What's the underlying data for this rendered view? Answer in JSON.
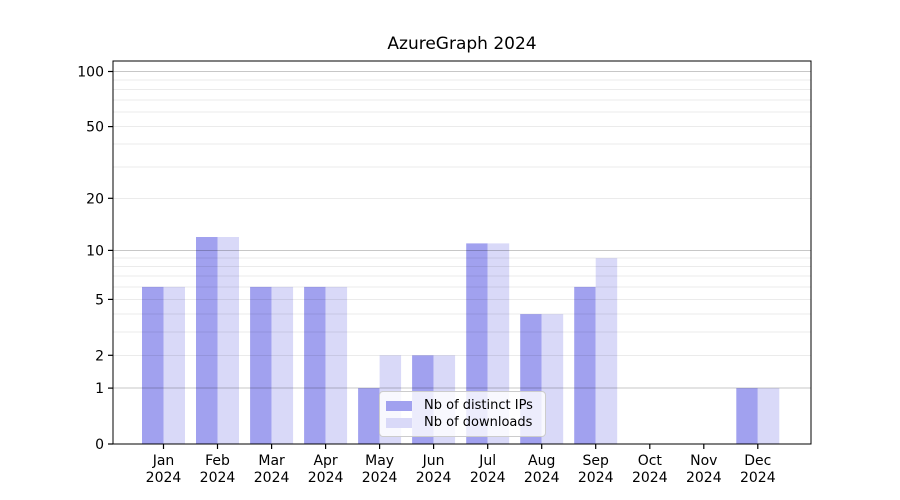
{
  "figure": {
    "title": "AzureGraph 2024"
  },
  "chart_data": {
    "type": "bar",
    "title": "AzureGraph 2024",
    "categories": [
      "Jan 2024",
      "Feb 2024",
      "Mar 2024",
      "Apr 2024",
      "May 2024",
      "Jun 2024",
      "Jul 2024",
      "Aug 2024",
      "Sep 2024",
      "Oct 2024",
      "Nov 2024",
      "Dec 2024"
    ],
    "x_tick_month": [
      "Jan",
      "Feb",
      "Mar",
      "Apr",
      "May",
      "Jun",
      "Jul",
      "Aug",
      "Sep",
      "Oct",
      "Nov",
      "Dec"
    ],
    "x_tick_year": [
      "2024",
      "2024",
      "2024",
      "2024",
      "2024",
      "2024",
      "2024",
      "2024",
      "2024",
      "2024",
      "2024",
      "2024"
    ],
    "series": [
      {
        "name": "Nb of distinct IPs",
        "color": "#a1a1ef",
        "values": [
          6,
          12,
          6,
          6,
          1,
          2,
          11,
          4,
          6,
          0,
          0,
          1
        ]
      },
      {
        "name": "Nb of downloads",
        "color": "#d9d9f8",
        "values": [
          6,
          12,
          6,
          6,
          2,
          2,
          11,
          4,
          9,
          0,
          0,
          1
        ]
      }
    ],
    "xlabel": "",
    "ylabel": "",
    "yscale": "log1p",
    "ylim": [
      0,
      114
    ],
    "yticks": [
      0,
      1,
      2,
      5,
      10,
      20,
      50,
      100
    ],
    "grid": true,
    "grid_major_values": [
      1,
      10,
      100
    ],
    "grid_minor_values": [
      2,
      3,
      4,
      5,
      6,
      7,
      8,
      9,
      20,
      30,
      40,
      50,
      60,
      70,
      80,
      90
    ],
    "legend_position": "lower center"
  },
  "colors": {
    "bar_distinct_ips": "#a1a1ef",
    "bar_downloads": "#d9d9f8",
    "grid_major": "rgba(0,0,0,0.22)",
    "grid_minor": "rgba(0,0,0,0.08)",
    "spine": "#000000",
    "tick_label": "#000000",
    "background": "#ffffff",
    "legend_border": "#cccccc"
  }
}
